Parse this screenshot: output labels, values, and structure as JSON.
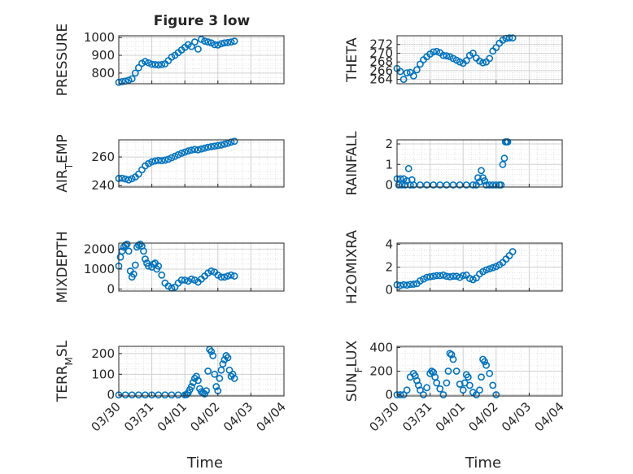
{
  "figure": {
    "title": "Figure 3 low"
  },
  "x_axis": {
    "label": "Time",
    "tick_labels": [
      "03/30",
      "03/31",
      "04/01",
      "04/02",
      "04/03",
      "04/04"
    ],
    "range": [
      "03/30",
      "04/04"
    ]
  },
  "colors": {
    "marker": "#0072BD",
    "grid": "#dcdcdc",
    "axes": "#262626"
  },
  "chart_data": [
    {
      "type": "scatter",
      "ylabel": "PRESSURE",
      "ylim": [
        740,
        1010
      ],
      "yticks": [
        800,
        900,
        1000
      ],
      "grid": "major+minor",
      "x": [
        0.0,
        0.1,
        0.2,
        0.3,
        0.4,
        0.5,
        0.6,
        0.7,
        0.8,
        0.9,
        1.0,
        1.1,
        1.2,
        1.3,
        1.4,
        1.5,
        1.6,
        1.7,
        1.8,
        1.9,
        2.0,
        2.1,
        2.2,
        2.3,
        2.4,
        2.5,
        2.6,
        2.7,
        2.8,
        2.9,
        3.0,
        3.1,
        3.2,
        3.3,
        3.4,
        3.5
      ],
      "y": [
        748,
        752,
        755,
        760,
        768,
        800,
        830,
        855,
        865,
        858,
        850,
        848,
        846,
        848,
        852,
        870,
        890,
        900,
        915,
        930,
        945,
        960,
        950,
        975,
        935,
        990,
        980,
        975,
        970,
        960,
        958,
        965,
        970,
        972,
        975,
        980
      ]
    },
    {
      "type": "scatter",
      "ylabel": "THETA",
      "ylim": [
        263,
        274
      ],
      "yticks": [
        264,
        266,
        268,
        270,
        272
      ],
      "grid": "major+minor",
      "x": [
        0.0,
        0.1,
        0.2,
        0.3,
        0.4,
        0.5,
        0.6,
        0.7,
        0.8,
        0.9,
        1.0,
        1.1,
        1.2,
        1.3,
        1.4,
        1.5,
        1.6,
        1.7,
        1.8,
        1.9,
        2.0,
        2.1,
        2.2,
        2.3,
        2.4,
        2.5,
        2.6,
        2.7,
        2.8,
        2.9,
        3.0,
        3.1,
        3.2,
        3.3,
        3.4,
        3.5
      ],
      "y": [
        266.5,
        265.8,
        264.0,
        265.5,
        265.6,
        264.8,
        266.2,
        267.5,
        268.5,
        269.2,
        269.8,
        270.3,
        270.4,
        270.1,
        269.5,
        269.4,
        269.2,
        268.8,
        268.4,
        268.0,
        267.7,
        268.3,
        269.5,
        270.0,
        268.9,
        268.2,
        267.8,
        268.0,
        268.8,
        270.5,
        271.3,
        272.3,
        273.0,
        273.4,
        273.5,
        273.5
      ]
    },
    {
      "type": "scatter",
      "ylabel": "AIR_TEMP",
      "ylim": [
        239,
        272
      ],
      "yticks": [
        240,
        260
      ],
      "grid": "major+minor",
      "x": [
        0.0,
        0.1,
        0.2,
        0.3,
        0.4,
        0.5,
        0.6,
        0.7,
        0.8,
        0.9,
        1.0,
        1.1,
        1.2,
        1.3,
        1.4,
        1.5,
        1.6,
        1.7,
        1.8,
        1.9,
        2.0,
        2.1,
        2.2,
        2.3,
        2.4,
        2.5,
        2.6,
        2.7,
        2.8,
        2.9,
        3.0,
        3.1,
        3.2,
        3.3,
        3.4,
        3.5
      ],
      "y": [
        245,
        245.2,
        244.6,
        244.0,
        244.8,
        246.0,
        248.0,
        251.0,
        253.8,
        255.4,
        256.6,
        257.2,
        257.6,
        257.4,
        257.8,
        258.4,
        259.5,
        260.5,
        261.6,
        262.6,
        263.4,
        264.2,
        264.8,
        265.3,
        265.0,
        265.6,
        266.2,
        266.8,
        267.2,
        267.6,
        268.0,
        268.4,
        269.0,
        269.6,
        270.4,
        271.0
      ]
    },
    {
      "type": "scatter",
      "ylabel": "RAINFALL",
      "ylim": [
        -0.1,
        2.2
      ],
      "yticks": [
        0,
        1,
        2
      ],
      "grid": "major+minor",
      "x": [
        0.0,
        0.05,
        0.1,
        0.15,
        0.2,
        0.25,
        0.3,
        0.35,
        0.4,
        0.45,
        0.5,
        0.7,
        0.9,
        1.1,
        1.3,
        1.5,
        1.7,
        1.9,
        2.1,
        2.3,
        2.4,
        2.45,
        2.5,
        2.55,
        2.6,
        2.65,
        2.7,
        2.8,
        2.9,
        3.0,
        3.1,
        3.15,
        3.2,
        3.25,
        3.28,
        3.32,
        3.35
      ],
      "y": [
        0.3,
        0.0,
        0.3,
        0.0,
        0.3,
        0.0,
        0.2,
        0.8,
        0.0,
        0.25,
        0.0,
        0.0,
        0.0,
        0.0,
        0.0,
        0.0,
        0.0,
        0.0,
        0.0,
        0.0,
        0.0,
        0.35,
        0.15,
        0.7,
        0.35,
        0.2,
        0.0,
        0.0,
        0.0,
        0.0,
        0.0,
        0.0,
        1.0,
        1.3,
        2.1,
        2.1,
        2.1
      ]
    },
    {
      "type": "scatter",
      "ylabel": "MIXDEPTH",
      "ylim": [
        -100,
        2300
      ],
      "yticks": [
        0,
        1000,
        2000
      ],
      "grid": "major+minor",
      "x": [
        0.0,
        0.05,
        0.1,
        0.15,
        0.2,
        0.25,
        0.3,
        0.35,
        0.4,
        0.45,
        0.5,
        0.55,
        0.6,
        0.65,
        0.7,
        0.75,
        0.8,
        0.85,
        0.9,
        1.0,
        1.05,
        1.1,
        1.15,
        1.2,
        1.3,
        1.4,
        1.5,
        1.6,
        1.7,
        1.8,
        1.9,
        2.0,
        2.1,
        2.2,
        2.3,
        2.4,
        2.5,
        2.6,
        2.7,
        2.8,
        2.9,
        3.0,
        3.1,
        3.2,
        3.3,
        3.4,
        3.5
      ],
      "y": [
        1150,
        1600,
        1900,
        2100,
        2200,
        2250,
        1900,
        900,
        600,
        750,
        1200,
        2100,
        2200,
        2250,
        2150,
        1900,
        1500,
        1300,
        1150,
        1100,
        1250,
        1300,
        1000,
        1150,
        700,
        300,
        150,
        50,
        100,
        300,
        450,
        450,
        400,
        500,
        450,
        350,
        500,
        650,
        800,
        900,
        850,
        700,
        600,
        600,
        650,
        700,
        650
      ]
    },
    {
      "type": "scatter",
      "ylabel": "H2OMIXRA",
      "ylim": [
        -0.1,
        4.1
      ],
      "yticks": [
        0,
        2,
        4
      ],
      "grid": "major+minor",
      "x": [
        0.0,
        0.1,
        0.2,
        0.3,
        0.4,
        0.5,
        0.6,
        0.7,
        0.8,
        0.9,
        1.0,
        1.1,
        1.2,
        1.3,
        1.4,
        1.5,
        1.6,
        1.7,
        1.8,
        1.9,
        2.0,
        2.1,
        2.2,
        2.3,
        2.4,
        2.5,
        2.6,
        2.7,
        2.8,
        2.9,
        3.0,
        3.1,
        3.2,
        3.3,
        3.4,
        3.5
      ],
      "y": [
        0.45,
        0.4,
        0.45,
        0.42,
        0.48,
        0.5,
        0.55,
        0.8,
        0.95,
        1.1,
        1.15,
        1.2,
        1.25,
        1.25,
        1.3,
        1.2,
        1.15,
        1.2,
        1.2,
        1.1,
        1.25,
        1.3,
        1.0,
        0.9,
        1.05,
        1.4,
        1.6,
        1.75,
        1.85,
        1.95,
        2.05,
        2.2,
        2.4,
        2.7,
        3.0,
        3.35
      ]
    },
    {
      "type": "scatter",
      "ylabel": "TERR_MSL",
      "ylim": [
        -5,
        235
      ],
      "yticks": [
        0,
        100,
        200
      ],
      "grid": "major+minor",
      "x": [
        0.0,
        0.2,
        0.4,
        0.6,
        0.8,
        1.0,
        1.2,
        1.4,
        1.6,
        1.8,
        2.0,
        2.05,
        2.1,
        2.15,
        2.2,
        2.25,
        2.3,
        2.35,
        2.4,
        2.45,
        2.5,
        2.55,
        2.6,
        2.65,
        2.7,
        2.75,
        2.8,
        2.85,
        2.9,
        2.95,
        3.0,
        3.05,
        3.1,
        3.15,
        3.2,
        3.25,
        3.3,
        3.35,
        3.4,
        3.45,
        3.5
      ],
      "y": [
        0,
        0,
        0,
        0,
        0,
        0,
        0,
        0,
        0,
        0,
        0,
        2,
        10,
        25,
        40,
        60,
        80,
        90,
        70,
        30,
        15,
        10,
        5,
        20,
        115,
        220,
        210,
        190,
        100,
        40,
        20,
        80,
        120,
        150,
        170,
        190,
        180,
        120,
        90,
        100,
        80
      ]
    },
    {
      "type": "scatter",
      "ylabel": "SUN_FLUX",
      "ylim": [
        -10,
        410
      ],
      "yticks": [
        0,
        200,
        400
      ],
      "grid": "major+minor",
      "x": [
        0.0,
        0.1,
        0.2,
        0.3,
        0.4,
        0.5,
        0.55,
        0.6,
        0.65,
        0.7,
        0.8,
        0.9,
        1.0,
        1.05,
        1.1,
        1.15,
        1.2,
        1.3,
        1.4,
        1.5,
        1.55,
        1.6,
        1.65,
        1.7,
        1.8,
        1.9,
        2.0,
        2.05,
        2.1,
        2.15,
        2.2,
        2.3,
        2.4,
        2.5,
        2.55,
        2.6,
        2.65,
        2.7,
        2.8,
        2.9,
        3.0
      ],
      "y": [
        0,
        0,
        0,
        40,
        150,
        180,
        160,
        120,
        80,
        40,
        0,
        60,
        180,
        200,
        190,
        150,
        100,
        50,
        0,
        100,
        200,
        350,
        340,
        300,
        200,
        90,
        40,
        100,
        170,
        150,
        80,
        20,
        0,
        40,
        150,
        300,
        280,
        250,
        180,
        80,
        0
      ]
    }
  ]
}
